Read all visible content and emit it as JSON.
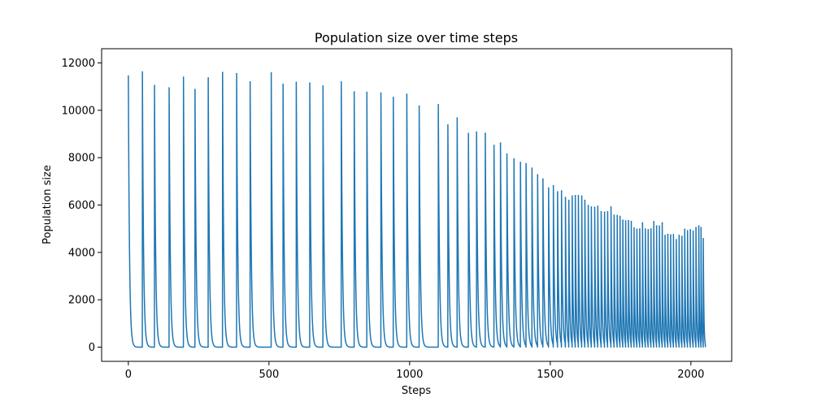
{
  "chart_data": {
    "type": "line",
    "title": "Population size over time steps",
    "xlabel": "Steps",
    "ylabel": "Population size",
    "xlim": [
      -95,
      2145
    ],
    "ylim": [
      -600,
      12600
    ],
    "xticks": [
      0,
      500,
      1000,
      1500,
      2000
    ],
    "yticks": [
      0,
      2000,
      4000,
      6000,
      8000,
      10000,
      12000
    ],
    "grid": false,
    "legend": "none",
    "colors": {
      "line": "#1f77b4"
    },
    "series": [
      {
        "peaks": [
          [
            0,
            11450
          ],
          [
            50,
            11620
          ],
          [
            93,
            11050
          ],
          [
            145,
            10950
          ],
          [
            196,
            11400
          ],
          [
            237,
            10880
          ],
          [
            284,
            11370
          ],
          [
            335,
            11600
          ],
          [
            385,
            11550
          ],
          [
            433,
            11200
          ],
          [
            508,
            11580
          ],
          [
            550,
            11100
          ],
          [
            597,
            11180
          ],
          [
            645,
            11150
          ],
          [
            692,
            11030
          ],
          [
            757,
            11200
          ],
          [
            803,
            10780
          ],
          [
            848,
            10760
          ],
          [
            898,
            10730
          ],
          [
            942,
            10550
          ],
          [
            990,
            10680
          ],
          [
            1034,
            10180
          ],
          [
            1102,
            10240
          ],
          [
            1136,
            9380
          ],
          [
            1169,
            9680
          ],
          [
            1209,
            9020
          ],
          [
            1238,
            9080
          ],
          [
            1269,
            9030
          ],
          [
            1300,
            8520
          ],
          [
            1323,
            8620
          ],
          [
            1346,
            8150
          ],
          [
            1371,
            7950
          ],
          [
            1394,
            7800
          ],
          [
            1414,
            7750
          ],
          [
            1435,
            7560
          ],
          [
            1455,
            7280
          ],
          [
            1474,
            7100
          ],
          [
            1494,
            6720
          ],
          [
            1511,
            6820
          ],
          [
            1526,
            6560
          ],
          [
            1540,
            6600
          ],
          [
            1554,
            6320
          ],
          [
            1566,
            6200
          ],
          [
            1578,
            6380
          ],
          [
            1589,
            6400
          ],
          [
            1600,
            6400
          ],
          [
            1612,
            6380
          ],
          [
            1623,
            6200
          ],
          [
            1635,
            5980
          ],
          [
            1646,
            5920
          ],
          [
            1658,
            5900
          ],
          [
            1669,
            5950
          ],
          [
            1681,
            5720
          ],
          [
            1693,
            5700
          ],
          [
            1704,
            5720
          ],
          [
            1716,
            5920
          ],
          [
            1727,
            5570
          ],
          [
            1738,
            5560
          ],
          [
            1748,
            5520
          ],
          [
            1758,
            5360
          ],
          [
            1768,
            5330
          ],
          [
            1778,
            5340
          ],
          [
            1788,
            5310
          ],
          [
            1798,
            5030
          ],
          [
            1808,
            4980
          ],
          [
            1818,
            4990
          ],
          [
            1828,
            5250
          ],
          [
            1838,
            4990
          ],
          [
            1848,
            4960
          ],
          [
            1858,
            4990
          ],
          [
            1868,
            5300
          ],
          [
            1878,
            5120
          ],
          [
            1888,
            5110
          ],
          [
            1898,
            5250
          ],
          [
            1908,
            4720
          ],
          [
            1918,
            4760
          ],
          [
            1928,
            4740
          ],
          [
            1938,
            4750
          ],
          [
            1948,
            4540
          ],
          [
            1958,
            4720
          ],
          [
            1968,
            4680
          ],
          [
            1978,
            4980
          ],
          [
            1988,
            4920
          ],
          [
            1998,
            4960
          ],
          [
            2008,
            4900
          ],
          [
            2018,
            5050
          ],
          [
            2028,
            5120
          ],
          [
            2036,
            5050
          ],
          [
            2044,
            4580
          ]
        ]
      }
    ]
  }
}
